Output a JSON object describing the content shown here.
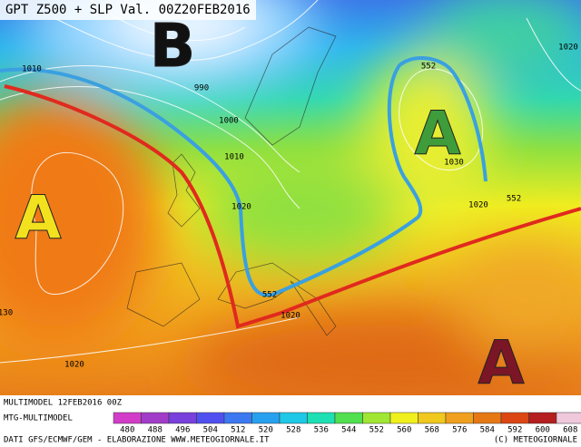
{
  "title": "GPT Z500 + SLP Val. 00Z20FEB2016",
  "pressure_centers": [
    {
      "label": "B",
      "color": "#111111"
    },
    {
      "label": "A",
      "color": "#f2e21e"
    },
    {
      "label": "A",
      "color": "#3f9c3a"
    },
    {
      "label": "A",
      "color": "#7a1626"
    }
  ],
  "isobar_labels": [
    "1010",
    "990",
    "1000",
    "1010",
    "1020",
    "552",
    "1030",
    "552",
    "1020",
    "1020",
    "552",
    "1020",
    "130",
    "1020"
  ],
  "footer": {
    "run": "MULTIMODEL 12FEB2016 00Z",
    "model": "MTG-MULTIMODEL",
    "source": "DATI GFS/ECMWF/GEM - ELABORAZIONE WWW.METEOGIORNALE.IT",
    "copyright": "(C) METEOGIORNALE"
  },
  "color_scale": {
    "values": [
      480,
      488,
      496,
      504,
      512,
      520,
      528,
      536,
      544,
      552,
      560,
      568,
      576,
      584,
      592,
      600,
      608
    ],
    "colors": [
      "#d23cc8",
      "#a03cc8",
      "#7840dc",
      "#5050f0",
      "#3c78f0",
      "#28a0f0",
      "#1ec8e6",
      "#1ee0b4",
      "#50e050",
      "#a0e632",
      "#f0f01e",
      "#f0c81e",
      "#f0a01e",
      "#e67814",
      "#dc4614",
      "#b41e1e",
      "#f0c8dc"
    ]
  }
}
